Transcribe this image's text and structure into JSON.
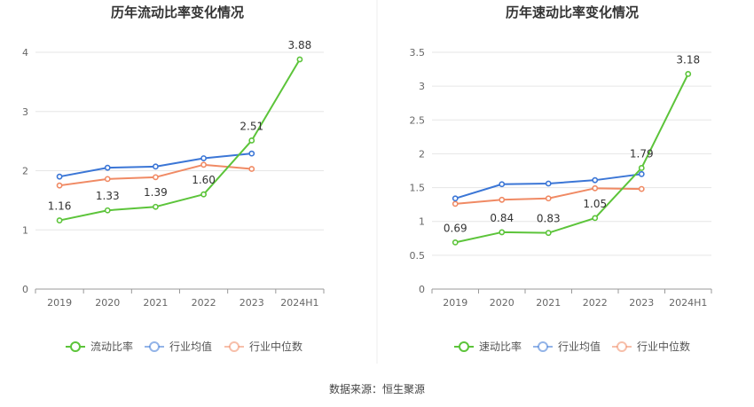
{
  "source": "数据来源：恒生聚源",
  "colors": {
    "company": "#5cc43a",
    "avg": "#3b76d6",
    "median": "#f08a64",
    "grid": "#e6e6e6",
    "axis": "#999999"
  },
  "chart_data": [
    {
      "type": "line",
      "title": "历年流动比率变化情况",
      "categories": [
        "2019",
        "2020",
        "2021",
        "2022",
        "2023",
        "2024H1"
      ],
      "ylim": [
        0,
        4
      ],
      "yticks": [
        "0",
        "1",
        "2",
        "3",
        "4"
      ],
      "grid": true,
      "legend_position": "bottom",
      "series": [
        {
          "name": "流动比率",
          "values": [
            1.16,
            1.33,
            1.39,
            1.6,
            2.51,
            3.88
          ],
          "labels": [
            "1.16",
            "1.33",
            "1.39",
            "1.60",
            "2.51",
            "3.88"
          ]
        },
        {
          "name": "行业均值",
          "values": [
            1.9,
            2.05,
            2.07,
            2.21,
            2.29,
            null
          ]
        },
        {
          "name": "行业中位数",
          "values": [
            1.75,
            1.86,
            1.89,
            2.1,
            2.03,
            null
          ]
        }
      ]
    },
    {
      "type": "line",
      "title": "历年速动比率变化情况",
      "categories": [
        "2019",
        "2020",
        "2021",
        "2022",
        "2023",
        "2024H1"
      ],
      "ylim": [
        0,
        3.5
      ],
      "yticks": [
        "0",
        "0.5",
        "1",
        "1.5",
        "2",
        "2.5",
        "3",
        "3.5"
      ],
      "grid": true,
      "legend_position": "bottom",
      "series": [
        {
          "name": "速动比率",
          "values": [
            0.69,
            0.84,
            0.83,
            1.05,
            1.79,
            3.18
          ],
          "labels": [
            "0.69",
            "0.84",
            "0.83",
            "1.05",
            "1.79",
            "3.18"
          ]
        },
        {
          "name": "行业均值",
          "values": [
            1.34,
            1.55,
            1.56,
            1.61,
            1.7,
            null
          ]
        },
        {
          "name": "行业中位数",
          "values": [
            1.26,
            1.32,
            1.34,
            1.49,
            1.48,
            null
          ]
        }
      ]
    }
  ]
}
